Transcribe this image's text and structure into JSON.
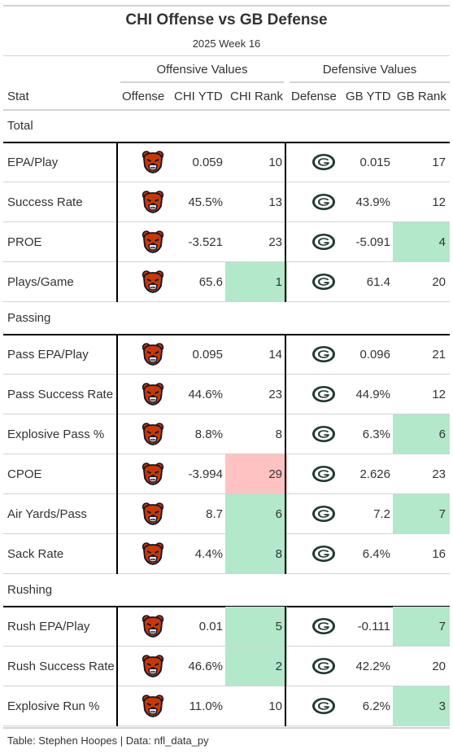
{
  "title": "CHI Offense vs GB Defense",
  "subtitle": "2025 Week 16",
  "spanners": {
    "offense": "Offensive Values",
    "defense": "Defensive Values"
  },
  "columns": {
    "stat": "Stat",
    "offense": "Offense",
    "off_ytd": "CHI YTD",
    "off_rank": "CHI Rank",
    "defense": "Defense",
    "def_ytd": "GB YTD",
    "def_rank": "GB Rank"
  },
  "colors": {
    "green": "#b3e8cb",
    "red": "#ffc2c2",
    "bears_orange": "#c83803",
    "bears_navy": "#0b162a",
    "packers_green": "#203731"
  },
  "icons": {
    "offense": "chicago-bears-logo",
    "defense": "green-bay-packers-logo"
  },
  "groups": [
    {
      "name": "Total",
      "rows": [
        {
          "stat": "EPA/Play",
          "off_ytd": "0.059",
          "off_rank": "10",
          "def_ytd": "0.015",
          "def_rank": "17",
          "off_hl": "",
          "def_hl": ""
        },
        {
          "stat": "Success Rate",
          "off_ytd": "45.5%",
          "off_rank": "13",
          "def_ytd": "43.9%",
          "def_rank": "12",
          "off_hl": "",
          "def_hl": ""
        },
        {
          "stat": "PROE",
          "off_ytd": "-3.521",
          "off_rank": "23",
          "def_ytd": "-5.091",
          "def_rank": "4",
          "off_hl": "",
          "def_hl": "green"
        },
        {
          "stat": "Plays/Game",
          "off_ytd": "65.6",
          "off_rank": "1",
          "def_ytd": "61.4",
          "def_rank": "20",
          "off_hl": "green",
          "def_hl": ""
        }
      ]
    },
    {
      "name": "Passing",
      "rows": [
        {
          "stat": "Pass EPA/Play",
          "off_ytd": "0.095",
          "off_rank": "14",
          "def_ytd": "0.096",
          "def_rank": "21",
          "off_hl": "",
          "def_hl": ""
        },
        {
          "stat": "Pass Success Rate",
          "off_ytd": "44.6%",
          "off_rank": "23",
          "def_ytd": "44.9%",
          "def_rank": "12",
          "off_hl": "",
          "def_hl": ""
        },
        {
          "stat": "Explosive Pass %",
          "off_ytd": "8.8%",
          "off_rank": "8",
          "def_ytd": "6.3%",
          "def_rank": "6",
          "off_hl": "",
          "def_hl": "green"
        },
        {
          "stat": "CPOE",
          "off_ytd": "-3.994",
          "off_rank": "29",
          "def_ytd": "2.626",
          "def_rank": "23",
          "off_hl": "red",
          "def_hl": ""
        },
        {
          "stat": "Air Yards/Pass",
          "off_ytd": "8.7",
          "off_rank": "6",
          "def_ytd": "7.2",
          "def_rank": "7",
          "off_hl": "green",
          "def_hl": "green"
        },
        {
          "stat": "Sack Rate",
          "off_ytd": "4.4%",
          "off_rank": "8",
          "def_ytd": "6.4%",
          "def_rank": "16",
          "off_hl": "green",
          "def_hl": ""
        }
      ]
    },
    {
      "name": "Rushing",
      "rows": [
        {
          "stat": "Rush EPA/Play",
          "off_ytd": "0.01",
          "off_rank": "5",
          "def_ytd": "-0.111",
          "def_rank": "7",
          "off_hl": "green",
          "def_hl": "green"
        },
        {
          "stat": "Rush Success Rate",
          "off_ytd": "46.6%",
          "off_rank": "2",
          "def_ytd": "42.2%",
          "def_rank": "20",
          "off_hl": "green",
          "def_hl": ""
        },
        {
          "stat": "Explosive Run %",
          "off_ytd": "11.0%",
          "off_rank": "10",
          "def_ytd": "6.2%",
          "def_rank": "3",
          "off_hl": "",
          "def_hl": "green"
        }
      ]
    }
  ],
  "footer": "Table: Stephen Hoopes | Data: nfl_data_py"
}
